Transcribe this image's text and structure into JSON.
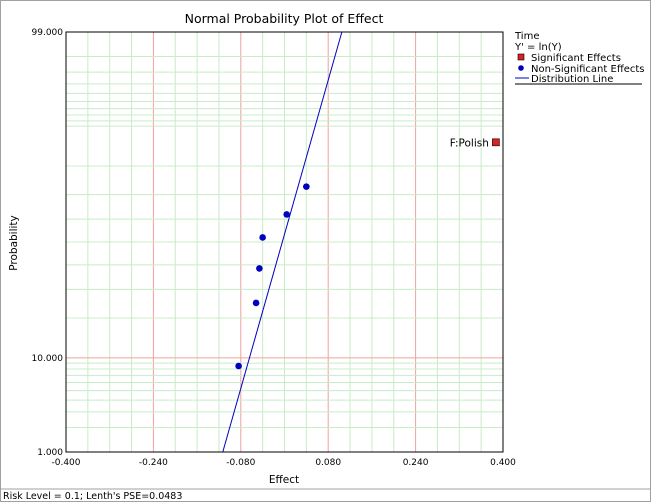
{
  "chart_data": {
    "type": "scatter",
    "title": "Normal Probability Plot of Effect",
    "xlabel": "Effect",
    "ylabel": "Probability",
    "xlim": [
      -0.4,
      0.4
    ],
    "ylim": [
      1.0,
      99.0
    ],
    "y_scale": "normal-probability",
    "x_ticks": [
      "-0.400",
      "-0.240",
      "-0.080",
      "0.080",
      "0.240",
      "0.400"
    ],
    "y_ticks": [
      "1.000",
      "10.000",
      "99.000"
    ],
    "grid": true,
    "legend": {
      "position": "right",
      "title": "Time",
      "subtitle": "Y' = ln(Y)",
      "entries": [
        {
          "label": "Significant Effects",
          "marker": "square",
          "color": "#e02020"
        },
        {
          "label": "Non-Significant Effects",
          "marker": "circle",
          "color": "#0000c0"
        },
        {
          "label": "Distribution Line",
          "marker": "line",
          "color": "#0000c0"
        }
      ]
    },
    "series": [
      {
        "name": "Non-Significant Effects",
        "points": [
          {
            "x": -0.084,
            "y": 8.5
          },
          {
            "x": -0.052,
            "y": 25.0
          },
          {
            "x": -0.046,
            "y": 38.5
          },
          {
            "x": -0.04,
            "y": 52.0
          },
          {
            "x": 0.004,
            "y": 62.0
          },
          {
            "x": 0.04,
            "y": 73.0
          }
        ]
      },
      {
        "name": "Significant Effects",
        "points": [
          {
            "x": 0.387,
            "y": 86.5,
            "label": "F:Polish"
          }
        ]
      }
    ],
    "distribution_line": [
      {
        "x": -0.113,
        "y": 1.0
      },
      {
        "x": 0.105,
        "y": 99.0
      }
    ],
    "colors": {
      "grid_major": "#f0a0a0",
      "grid_minor": "#c8ecc8",
      "line": "#0000c0",
      "non_significant": "#0000c0",
      "significant": "#e02020"
    }
  },
  "footer": "Risk Level = 0.1; Lenth's PSE=0.0483"
}
